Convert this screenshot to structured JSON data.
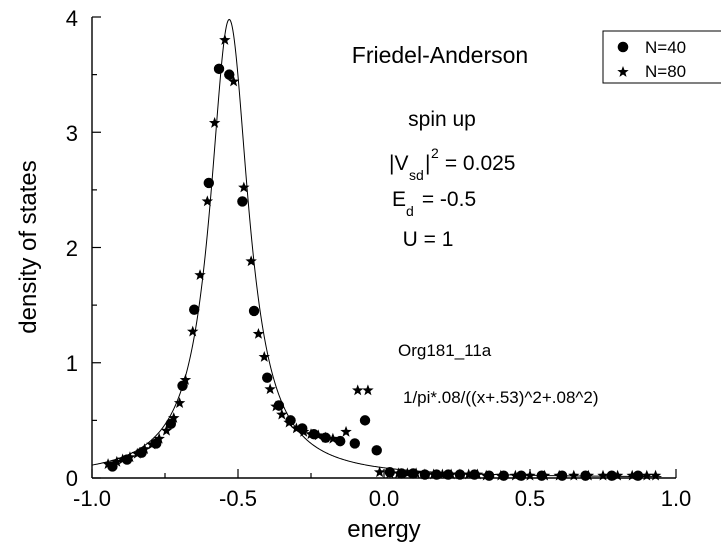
{
  "chart_data": {
    "type": "scatter",
    "xlabel": "energy",
    "ylabel": "density of states",
    "xlim": [
      -1.0,
      1.0
    ],
    "ylim": [
      0,
      4
    ],
    "x_ticks": [
      "-1.0",
      "-0.5",
      "0.0",
      "0.5",
      "1.0"
    ],
    "y_ticks": [
      "0",
      "1",
      "2",
      "3",
      "4"
    ],
    "grid": false,
    "legend_position": "top-right",
    "annotations": {
      "title": "Friedel-Anderson",
      "spin": "spin up",
      "vsd_base": "|V",
      "vsd_sub": "sd",
      "vsd_bar": "|",
      "vsd_sup": "2",
      "vsd_value": " = 0.025",
      "ed_base": "E",
      "ed_sub": "d",
      "ed_value": " = -0.5",
      "u_line": "U = 1",
      "file_label": "Org181_11a",
      "formula": "1/pi*.08/((x+.53)^2+.08^2)"
    },
    "fit": {
      "center": -0.53,
      "width": 0.08,
      "expression": "1/pi*.08/((x+.53)^2+.08^2)"
    },
    "series": [
      {
        "name": "N=40",
        "marker": "circle",
        "points": [
          [
            -0.93,
            0.1
          ],
          [
            -0.88,
            0.16
          ],
          [
            -0.83,
            0.22
          ],
          [
            -0.78,
            0.3
          ],
          [
            -0.73,
            0.47
          ],
          [
            -0.69,
            0.8
          ],
          [
            -0.65,
            1.46
          ],
          [
            -0.6,
            2.56
          ],
          [
            -0.565,
            3.55
          ],
          [
            -0.53,
            3.5
          ],
          [
            -0.485,
            2.4
          ],
          [
            -0.445,
            1.45
          ],
          [
            -0.4,
            0.87
          ],
          [
            -0.36,
            0.63
          ],
          [
            -0.32,
            0.5
          ],
          [
            -0.28,
            0.43
          ],
          [
            -0.24,
            0.38
          ],
          [
            -0.2,
            0.35
          ],
          [
            -0.15,
            0.32
          ],
          [
            -0.1,
            0.3
          ],
          [
            -0.065,
            0.5
          ],
          [
            -0.025,
            0.24
          ],
          [
            0.02,
            0.05
          ],
          [
            0.06,
            0.04
          ],
          [
            0.1,
            0.04
          ],
          [
            0.14,
            0.03
          ],
          [
            0.18,
            0.03
          ],
          [
            0.22,
            0.03
          ],
          [
            0.26,
            0.03
          ],
          [
            0.31,
            0.03
          ],
          [
            0.36,
            0.02
          ],
          [
            0.41,
            0.02
          ],
          [
            0.47,
            0.02
          ],
          [
            0.54,
            0.02
          ],
          [
            0.61,
            0.02
          ],
          [
            0.69,
            0.02
          ],
          [
            0.78,
            0.02
          ],
          [
            0.87,
            0.02
          ]
        ]
      },
      {
        "name": "N=80",
        "marker": "star",
        "points": [
          [
            -0.945,
            0.12
          ],
          [
            -0.915,
            0.14
          ],
          [
            -0.895,
            0.16
          ],
          [
            -0.87,
            0.18
          ],
          [
            -0.845,
            0.21
          ],
          [
            -0.82,
            0.25
          ],
          [
            -0.795,
            0.29
          ],
          [
            -0.77,
            0.34
          ],
          [
            -0.745,
            0.41
          ],
          [
            -0.72,
            0.52
          ],
          [
            -0.7,
            0.65
          ],
          [
            -0.68,
            0.85
          ],
          [
            -0.655,
            1.27
          ],
          [
            -0.63,
            1.76
          ],
          [
            -0.605,
            2.4
          ],
          [
            -0.58,
            3.08
          ],
          [
            -0.545,
            3.8
          ],
          [
            -0.515,
            3.44
          ],
          [
            -0.48,
            2.52
          ],
          [
            -0.455,
            1.88
          ],
          [
            -0.43,
            1.25
          ],
          [
            -0.41,
            1.05
          ],
          [
            -0.39,
            0.77
          ],
          [
            -0.37,
            0.62
          ],
          [
            -0.35,
            0.55
          ],
          [
            -0.325,
            0.48
          ],
          [
            -0.3,
            0.43
          ],
          [
            -0.275,
            0.4
          ],
          [
            -0.25,
            0.38
          ],
          [
            -0.225,
            0.37
          ],
          [
            -0.2,
            0.35
          ],
          [
            -0.175,
            0.34
          ],
          [
            -0.13,
            0.4
          ],
          [
            -0.09,
            0.76
          ],
          [
            -0.055,
            0.76
          ],
          [
            -0.015,
            0.05
          ],
          [
            0.02,
            0.04
          ],
          [
            0.05,
            0.04
          ],
          [
            0.08,
            0.04
          ],
          [
            0.11,
            0.04
          ],
          [
            0.14,
            0.03
          ],
          [
            0.17,
            0.03
          ],
          [
            0.2,
            0.03
          ],
          [
            0.23,
            0.03
          ],
          [
            0.26,
            0.03
          ],
          [
            0.29,
            0.03
          ],
          [
            0.32,
            0.03
          ],
          [
            0.35,
            0.02
          ],
          [
            0.4,
            0.02
          ],
          [
            0.45,
            0.02
          ],
          [
            0.5,
            0.02
          ],
          [
            0.55,
            0.02
          ],
          [
            0.6,
            0.02
          ],
          [
            0.65,
            0.02
          ],
          [
            0.7,
            0.02
          ],
          [
            0.75,
            0.02
          ],
          [
            0.8,
            0.02
          ],
          [
            0.85,
            0.02
          ],
          [
            0.9,
            0.02
          ],
          [
            0.93,
            0.02
          ]
        ]
      }
    ]
  }
}
